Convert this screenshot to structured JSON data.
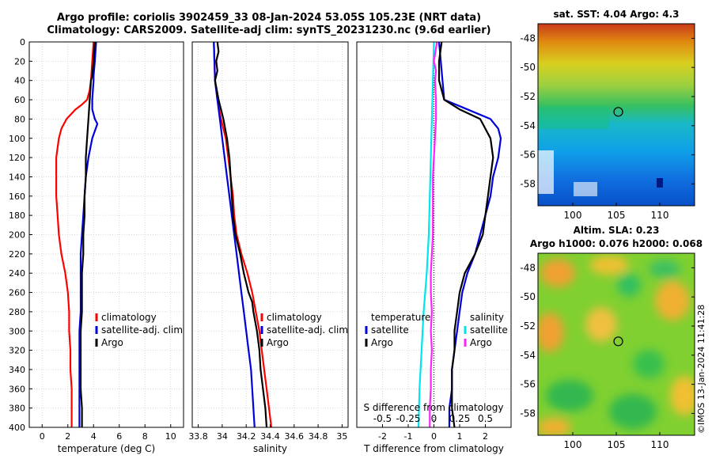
{
  "header": {
    "title_line1": "Argo profile: coriolis 3902459_33 08-Jan-2024 53.05S 105.23E (NRT data)",
    "title_line2": "Climatology: CARS2009. Satellite-adj clim: synTS_20231230.nc (9.6d earlier)"
  },
  "colors": {
    "climatology": "#ff0000",
    "satellite": "#0000dd",
    "argo": "#000000",
    "temp_diff": "#00e5ee",
    "sal_diff": "#ff22ff"
  },
  "chart_data": [
    {
      "type": "line",
      "id": "temperature",
      "xlabel": "temperature (deg C)",
      "xlim": [
        -1,
        11
      ],
      "xticks": [
        "0",
        "2",
        "4",
        "6",
        "8",
        "10"
      ],
      "xtick_values": [
        0,
        2,
        4,
        6,
        8,
        10
      ],
      "ylim": [
        0,
        400
      ],
      "yticks": [
        "0",
        "20",
        "40",
        "60",
        "80",
        "100",
        "120",
        "140",
        "160",
        "180",
        "200",
        "220",
        "240",
        "260",
        "280",
        "300",
        "320",
        "340",
        "360",
        "380",
        "400"
      ],
      "legend": [
        "climatology",
        "satellite-adj. clim",
        "Argo"
      ],
      "series": [
        {
          "name": "climatology",
          "depth": [
            0,
            20,
            40,
            50,
            60,
            65,
            70,
            80,
            90,
            100,
            120,
            140,
            160,
            180,
            200,
            220,
            240,
            260,
            280,
            300,
            320,
            340,
            360,
            380,
            400
          ],
          "values": [
            4.0,
            3.9,
            3.8,
            3.7,
            3.5,
            3.1,
            2.6,
            1.9,
            1.5,
            1.3,
            1.1,
            1.1,
            1.1,
            1.2,
            1.3,
            1.5,
            1.8,
            2.0,
            2.1,
            2.1,
            2.2,
            2.2,
            2.3,
            2.3,
            2.3
          ]
        },
        {
          "name": "satellite-adj. clim",
          "depth": [
            0,
            20,
            35,
            40,
            60,
            70,
            80,
            85,
            100,
            120,
            140,
            160,
            180,
            200,
            220,
            240,
            260,
            280,
            300,
            320,
            340,
            360,
            380,
            400
          ],
          "values": [
            4.2,
            4.1,
            4.0,
            4.0,
            3.9,
            3.9,
            4.1,
            4.3,
            3.9,
            3.6,
            3.4,
            3.3,
            3.2,
            3.1,
            3.0,
            3.0,
            3.0,
            3.0,
            2.9,
            2.9,
            2.9,
            2.9,
            2.9,
            2.9
          ]
        },
        {
          "name": "Argo",
          "depth": [
            0,
            20,
            35,
            40,
            60,
            80,
            100,
            120,
            140,
            160,
            180,
            200,
            220,
            240,
            260,
            280,
            300,
            320,
            340,
            360,
            380,
            400
          ],
          "values": [
            4.1,
            4.0,
            3.9,
            3.8,
            3.7,
            3.6,
            3.5,
            3.4,
            3.4,
            3.3,
            3.3,
            3.2,
            3.2,
            3.1,
            3.1,
            3.1,
            3.0,
            3.0,
            3.0,
            3.0,
            3.1,
            3.1
          ]
        }
      ]
    },
    {
      "type": "line",
      "id": "salinity",
      "xlabel": "salinity",
      "xlim": [
        33.75,
        35.05
      ],
      "xticks": [
        "33.8",
        "34",
        "34.2",
        "34.4",
        "34.6",
        "34.8",
        "35"
      ],
      "xtick_values": [
        33.8,
        34.0,
        34.2,
        34.4,
        34.6,
        34.8,
        35.0
      ],
      "ylim": [
        0,
        400
      ],
      "legend": [
        "climatology",
        "satellite-adj. clim",
        "Argo"
      ],
      "series": [
        {
          "name": "climatology",
          "depth": [
            0,
            40,
            60,
            80,
            100,
            120,
            140,
            160,
            180,
            200,
            220,
            240,
            260,
            280,
            300,
            320,
            340,
            360,
            380,
            400
          ],
          "values": [
            33.93,
            33.94,
            33.96,
            33.99,
            34.03,
            34.05,
            34.07,
            34.09,
            34.1,
            34.12,
            34.16,
            34.21,
            34.25,
            34.28,
            34.31,
            34.33,
            34.35,
            34.37,
            34.39,
            34.41
          ]
        },
        {
          "name": "satellite-adj. clim",
          "depth": [
            0,
            40,
            60,
            80,
            100,
            120,
            140,
            160,
            180,
            200,
            220,
            240,
            260,
            280,
            300,
            320,
            340,
            360,
            380,
            400
          ],
          "values": [
            33.93,
            33.94,
            33.96,
            33.98,
            34.0,
            34.02,
            34.04,
            34.06,
            34.08,
            34.1,
            34.12,
            34.14,
            34.16,
            34.18,
            34.2,
            34.22,
            34.24,
            34.25,
            34.26,
            34.27
          ]
        },
        {
          "name": "Argo",
          "depth": [
            0,
            10,
            20,
            30,
            40,
            60,
            80,
            100,
            120,
            140,
            160,
            180,
            200,
            220,
            240,
            260,
            270,
            280,
            300,
            320,
            340,
            360,
            380,
            400
          ],
          "values": [
            33.96,
            33.97,
            33.95,
            33.96,
            33.94,
            33.97,
            34.01,
            34.04,
            34.06,
            34.07,
            34.08,
            34.09,
            34.11,
            34.15,
            34.18,
            34.22,
            34.25,
            34.26,
            34.29,
            34.31,
            34.32,
            34.34,
            34.36,
            34.37
          ]
        }
      ]
    },
    {
      "type": "line",
      "id": "difference",
      "xlabel": "T difference from climatology",
      "xlabel_top": "S difference from climatology",
      "xlim": [
        -3,
        3
      ],
      "xticks": [
        "-2",
        "-1",
        "0",
        "1",
        "2"
      ],
      "xtick_values": [
        -2,
        -1,
        0,
        1,
        2
      ],
      "top_xticks": [
        "-0.5",
        "-0.25",
        "0",
        "0.25",
        "0.5"
      ],
      "top_xtick_values": [
        -0.5,
        -0.25,
        0,
        0.25,
        0.5
      ],
      "s_scale": [
        -0.75,
        0.75
      ],
      "ylim": [
        0,
        400
      ],
      "legend_left": [
        "temperature",
        "satellite",
        "Argo"
      ],
      "legend_right": [
        "salinity",
        "satellite",
        "Argo"
      ],
      "series": [
        {
          "name": "T satellite",
          "kind": "T",
          "depth": [
            0,
            60,
            70,
            80,
            90,
            100,
            120,
            140,
            160,
            180,
            200,
            220,
            240,
            260,
            280,
            300,
            320,
            340,
            360,
            380,
            400
          ],
          "values": [
            0.2,
            0.4,
            1.3,
            2.2,
            2.5,
            2.6,
            2.5,
            2.3,
            2.2,
            2.0,
            1.8,
            1.6,
            1.3,
            1.1,
            1.0,
            0.9,
            0.8,
            0.7,
            0.7,
            0.6,
            0.6
          ]
        },
        {
          "name": "T Argo",
          "kind": "T",
          "depth": [
            0,
            20,
            40,
            60,
            70,
            80,
            100,
            120,
            140,
            160,
            180,
            200,
            220,
            240,
            260,
            280,
            300,
            320,
            340,
            360,
            380,
            400
          ],
          "values": [
            0.3,
            0.2,
            0.2,
            0.4,
            1.0,
            1.8,
            2.2,
            2.3,
            2.2,
            2.1,
            2.0,
            1.9,
            1.6,
            1.2,
            1.0,
            0.9,
            0.8,
            0.8,
            0.7,
            0.7,
            0.7,
            0.8
          ]
        },
        {
          "name": "S satellite",
          "kind": "S",
          "depth": [
            0,
            40,
            80,
            120,
            160,
            200,
            240,
            280,
            320,
            360,
            400
          ],
          "values": [
            0.0,
            -0.01,
            -0.02,
            -0.03,
            -0.04,
            -0.05,
            -0.07,
            -0.1,
            -0.12,
            -0.14,
            -0.15
          ]
        },
        {
          "name": "S Argo",
          "kind": "S",
          "depth": [
            0,
            20,
            30,
            40,
            60,
            80,
            100,
            120,
            140,
            160,
            180,
            200,
            220,
            240,
            260,
            280,
            300,
            320,
            340,
            360,
            380,
            400
          ],
          "values": [
            0.03,
            0.0,
            0.02,
            0.01,
            0.02,
            0.02,
            0.01,
            0.0,
            -0.01,
            -0.01,
            -0.01,
            -0.01,
            -0.02,
            -0.03,
            -0.03,
            -0.02,
            -0.03,
            -0.02,
            -0.03,
            -0.03,
            -0.04,
            -0.04
          ]
        }
      ]
    },
    {
      "type": "heatmap",
      "id": "sst_map",
      "title": "sat. SST: 4.04 Argo: 4.3",
      "lon_range": [
        96,
        114
      ],
      "lat_range": [
        -59.5,
        -47
      ],
      "xticks": [
        "100",
        "105",
        "110"
      ],
      "xtick_values": [
        100,
        105,
        110
      ],
      "yticks": [
        "-48",
        "-50",
        "-52",
        "-54",
        "-56",
        "-58"
      ],
      "ytick_values": [
        -48,
        -50,
        -52,
        -54,
        -56,
        -58
      ],
      "float_position": [
        105.23,
        -53.05
      ]
    },
    {
      "type": "heatmap",
      "id": "sla_map",
      "title": "Altim. SLA: 0.23",
      "subtitle": "Argo h1000: 0.076 h2000: 0.068",
      "lon_range": [
        96,
        114
      ],
      "lat_range": [
        -59.5,
        -47
      ],
      "xticks": [
        "100",
        "105",
        "110"
      ],
      "xtick_values": [
        100,
        105,
        110
      ],
      "yticks": [
        "-48",
        "-50",
        "-52",
        "-54",
        "-56",
        "-58"
      ],
      "ytick_values": [
        -48,
        -50,
        -52,
        -54,
        -56,
        -58
      ],
      "float_position": [
        105.23,
        -53.05
      ]
    }
  ],
  "watermark": "©IMOS 13-Jan-2024 11:41:28"
}
